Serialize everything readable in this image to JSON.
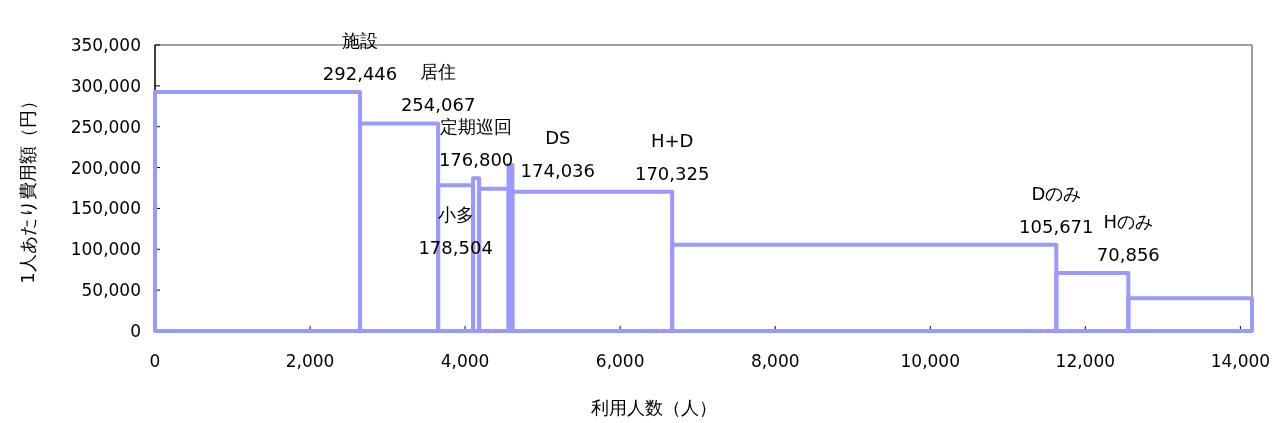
{
  "chart_data": {
    "type": "histogram",
    "xlabel": "利用人数（人）",
    "ylabel": "1人あたり費用額（円）",
    "bins": [
      0,
      2645,
      3652,
      4103,
      4181,
      4560,
      4610,
      6671,
      11626,
      12555,
      14150
    ],
    "values": [
      292446,
      254067,
      178504,
      187000,
      174036,
      203000,
      170325,
      105671,
      70856,
      40000
    ],
    "color": "#9999ff",
    "xlim": [
      0,
      14150
    ],
    "ylim": [
      0,
      350000
    ],
    "xticks": [
      0,
      {
        "value": 2000,
        "label": "2,000"
      },
      {
        "value": 4000,
        "label": "4,000"
      },
      {
        "value": 6000,
        "label": "6,000"
      },
      {
        "value": 8000,
        "label": "8,000"
      },
      {
        "value": 10000,
        "label": "10,000"
      },
      {
        "value": 12000,
        "label": "12,000"
      },
      {
        "value": 14000,
        "label": "14,000"
      }
    ],
    "yticks": [
      0,
      {
        "value": 50000,
        "label": "50,000"
      },
      {
        "value": 100000,
        "label": "100,000"
      },
      {
        "value": 150000,
        "label": "150,000"
      },
      {
        "value": 200000,
        "label": "200,000"
      },
      {
        "value": 250000,
        "label": "250,000"
      },
      {
        "value": 300000,
        "label": "300,000"
      },
      {
        "value": 350000,
        "label": "350,000"
      }
    ],
    "annotations": [
      {
        "text": "施設\n292,446",
        "x": 2645,
        "y": 292446
      },
      {
        "text": "居住\n254,067",
        "x": 3652,
        "y": 254067
      },
      {
        "text": "定期巡回\n176,800",
        "x": 4142,
        "y": 187000
      },
      {
        "text": "DS\n174,036",
        "x": 4370,
        "y": 174036
      },
      {
        "text": "小多\n178,504",
        "x": 3878,
        "y": 178504
      },
      {
        "text": "H+D\n170,325",
        "x": 6671,
        "y": 170325
      },
      {
        "text": "Dのみ\n105,671",
        "x": 11626,
        "y": 105671
      },
      {
        "text": "Hのみ\n70,856",
        "x": 12555,
        "y": 70856
      }
    ]
  }
}
